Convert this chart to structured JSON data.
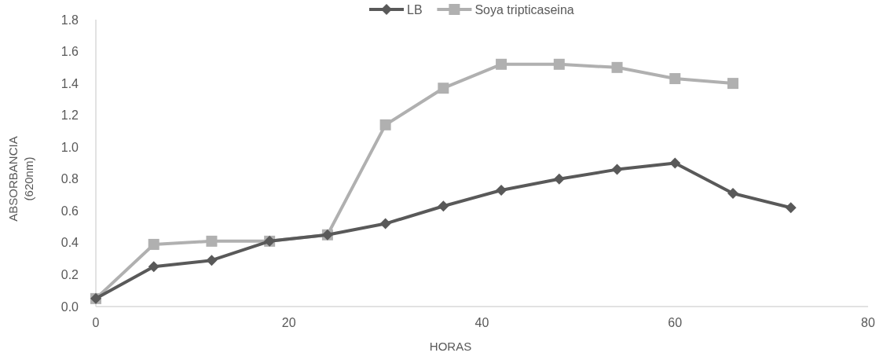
{
  "chart_data": {
    "type": "line",
    "xlabel": "HORAS",
    "ylabel": "ABSORBANCIA (620nm)",
    "xlim": [
      0,
      80
    ],
    "xticks": [
      0,
      20,
      40,
      60,
      80
    ],
    "ylim": [
      0,
      1.8
    ],
    "yticks": [
      {
        "value": 0,
        "label": "0.0"
      },
      {
        "value": 0.2,
        "label": "0.2"
      },
      {
        "value": 0.4,
        "label": "0.4"
      },
      {
        "value": 0.6,
        "label": "0.6"
      },
      {
        "value": 0.8,
        "label": "0.8"
      },
      {
        "value": 1,
        "label": "1.0"
      },
      {
        "value": 1.2,
        "label": "1.2"
      },
      {
        "value": 1.4,
        "label": "1.4"
      },
      {
        "value": 1.6,
        "label": "1.6"
      },
      {
        "value": 1.8,
        "label": "1.8"
      }
    ],
    "grid": false,
    "legend": "top",
    "line_style": "solid",
    "series": [
      {
        "name": "LB",
        "color": "#595959",
        "marker": "diamond",
        "x": [
          0,
          6,
          12,
          18,
          24,
          30,
          36,
          42,
          48,
          54,
          60,
          66,
          72
        ],
        "values": [
          0.05,
          0.25,
          0.29,
          0.41,
          0.45,
          0.52,
          0.63,
          0.73,
          0.8,
          0.86,
          0.9,
          0.71,
          0.62
        ]
      },
      {
        "name": "Soya tripticaseina",
        "color": "#b0b0b0",
        "marker": "square",
        "x": [
          0,
          6,
          12,
          18,
          24,
          30,
          36,
          42,
          48,
          54,
          60,
          66
        ],
        "values": [
          0.05,
          0.39,
          0.41,
          0.41,
          0.45,
          1.14,
          1.37,
          1.52,
          1.52,
          1.5,
          1.43,
          1.4
        ]
      }
    ]
  }
}
